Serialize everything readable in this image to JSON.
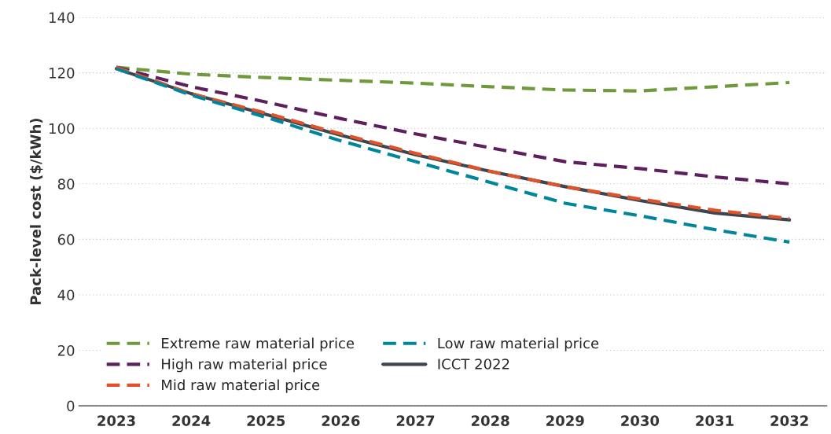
{
  "chart_data": {
    "type": "line",
    "ylabel": "Pack-level cost ($/kWh)",
    "categories": [
      "2023",
      "2024",
      "2025",
      "2026",
      "2027",
      "2028",
      "2029",
      "2030",
      "2031",
      "2032"
    ],
    "series": [
      {
        "name": "Extreme raw material price",
        "color": "#6e9a3c",
        "line_style": "dashed",
        "values": [
          122,
          119.5,
          118.3,
          117.3,
          116.3,
          115,
          113.8,
          113.5,
          115,
          116.5
        ]
      },
      {
        "name": "High raw material price",
        "color": "#5e1f5e",
        "line_style": "dashed",
        "values": [
          122,
          115,
          109.5,
          103.5,
          98,
          93,
          88,
          85.5,
          82.5,
          80
        ]
      },
      {
        "name": "Mid raw material price",
        "color": "#e0532a",
        "line_style": "dashed",
        "values": [
          122,
          112.5,
          105.5,
          98,
          91,
          84.5,
          79,
          74.5,
          70.5,
          67.5
        ]
      },
      {
        "name": "Low raw material price",
        "color": "#00869b",
        "line_style": "dashed",
        "values": [
          121.5,
          112,
          104,
          95.5,
          88,
          80.5,
          73,
          68.5,
          63.5,
          59
        ]
      },
      {
        "name": "ICCT 2022",
        "color": "#3d4550",
        "line_style": "solid",
        "values": [
          121.5,
          112.5,
          105,
          97.5,
          90.5,
          84.5,
          79,
          74,
          69.5,
          67
        ]
      }
    ],
    "ylim": [
      0,
      140
    ],
    "yticks": [
      0,
      20,
      40,
      60,
      80,
      100,
      120,
      140
    ],
    "grid": "y",
    "legend": "bottom left"
  }
}
